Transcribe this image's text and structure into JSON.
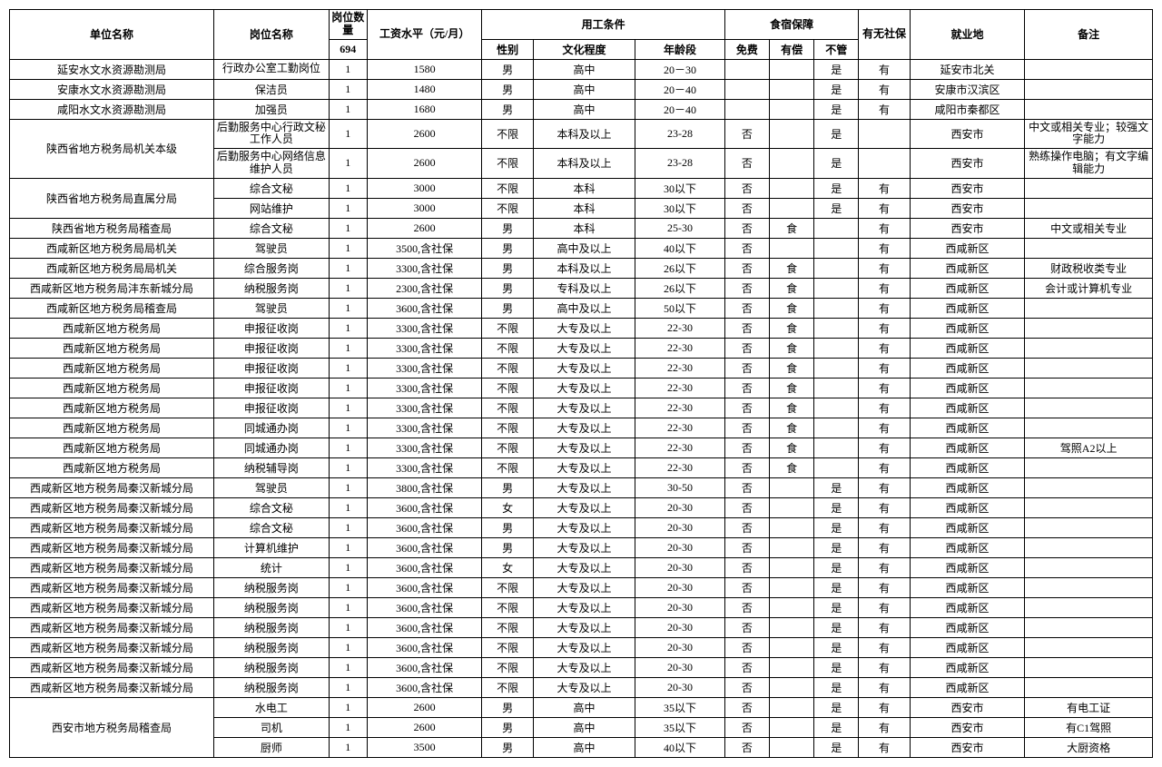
{
  "headers": {
    "unit": "单位名称",
    "position": "岗位名称",
    "count_label": "岗位数量",
    "count_total": "694",
    "salary": "工资水平（元/月）",
    "conditions": "用工条件",
    "gender": "性别",
    "education": "文化程度",
    "age": "年龄段",
    "room_board": "食宿保障",
    "free": "免费",
    "paid": "有偿",
    "none": "不管",
    "social_sec": "有无社保",
    "location": "就业地",
    "notes": "备注"
  },
  "rows": [
    {
      "unit": "延安水文水资源勘测局",
      "position": "行政办公室工勤岗位",
      "wrap_p": true,
      "count": "1",
      "salary": "1580",
      "gender": "男",
      "edu": "高中",
      "age": "20－30",
      "free": "",
      "paid": "",
      "none": "是",
      "ss": "有",
      "loc": "延安市北关",
      "note": ""
    },
    {
      "unit": "安康水文水资源勘测局",
      "position": "保洁员",
      "count": "1",
      "salary": "1480",
      "gender": "男",
      "edu": "高中",
      "age": "20－40",
      "free": "",
      "paid": "",
      "none": "是",
      "ss": "有",
      "loc": "安康市汉滨区",
      "note": ""
    },
    {
      "unit": "咸阳水文水资源勘测局",
      "position": "加强员",
      "count": "1",
      "salary": "1680",
      "gender": "男",
      "edu": "高中",
      "age": "20－40",
      "free": "",
      "paid": "",
      "none": "是",
      "ss": "有",
      "loc": "咸阳市秦都区",
      "note": ""
    },
    {
      "unit": "陕西省地方税务局机关本级",
      "span": 2,
      "position": "后勤服务中心行政文秘工作人员",
      "wrap_p": true,
      "count": "1",
      "salary": "2600",
      "gender": "不限",
      "edu": "本科及以上",
      "age": "23-28",
      "free": "否",
      "paid": "",
      "none": "是",
      "ss": "",
      "loc": "西安市",
      "note": "中文或相关专业；较强文字能力",
      "wrap_n": true
    },
    {
      "position": "后勤服务中心网络信息维护人员",
      "wrap_p": true,
      "count": "1",
      "salary": "2600",
      "gender": "不限",
      "edu": "本科及以上",
      "age": "23-28",
      "free": "否",
      "paid": "",
      "none": "是",
      "ss": "",
      "loc": "西安市",
      "note": "熟练操作电脑；有文字编辑能力",
      "wrap_n": true
    },
    {
      "unit": "陕西省地方税务局直属分局",
      "span": 2,
      "position": "综合文秘",
      "count": "1",
      "salary": "3000",
      "gender": "不限",
      "edu": "本科",
      "age": "30以下",
      "free": "否",
      "paid": "",
      "none": "是",
      "ss": "有",
      "loc": "西安市",
      "note": ""
    },
    {
      "position": "网站维护",
      "count": "1",
      "salary": "3000",
      "gender": "不限",
      "edu": "本科",
      "age": "30以下",
      "free": "否",
      "paid": "",
      "none": "是",
      "ss": "有",
      "loc": "西安市",
      "note": ""
    },
    {
      "unit": "陕西省地方税务局稽查局",
      "position": "综合文秘",
      "count": "1",
      "salary": "2600",
      "gender": "男",
      "edu": "本科",
      "age": "25-30",
      "free": "否",
      "paid": "食",
      "none": "",
      "ss": "有",
      "loc": "西安市",
      "note": "中文或相关专业"
    },
    {
      "unit": "西咸新区地方税务局局机关",
      "position": "驾驶员",
      "count": "1",
      "salary": "3500,含社保",
      "gender": "男",
      "edu": "高中及以上",
      "age": "40以下",
      "free": "否",
      "paid": "",
      "none": "",
      "ss": "有",
      "loc": "西咸新区",
      "note": ""
    },
    {
      "unit": "西咸新区地方税务局局机关",
      "position": "综合服务岗",
      "count": "1",
      "salary": "3300,含社保",
      "gender": "男",
      "edu": "本科及以上",
      "age": "26以下",
      "free": "否",
      "paid": "食",
      "none": "",
      "ss": "有",
      "loc": "西咸新区",
      "note": "财政税收类专业"
    },
    {
      "unit": "西咸新区地方税务局沣东新城分局",
      "position": "纳税服务岗",
      "count": "1",
      "salary": "2300,含社保",
      "gender": "男",
      "edu": "专科及以上",
      "age": "26以下",
      "free": "否",
      "paid": "食",
      "none": "",
      "ss": "有",
      "loc": "西咸新区",
      "note": "会计或计算机专业"
    },
    {
      "unit": "西咸新区地方税务局稽查局",
      "position": "驾驶员",
      "count": "1",
      "salary": "3600,含社保",
      "gender": "男",
      "edu": "高中及以上",
      "age": "50以下",
      "free": "否",
      "paid": "食",
      "none": "",
      "ss": "有",
      "loc": "西咸新区",
      "note": ""
    },
    {
      "unit": "西咸新区地方税务局",
      "position": "申报征收岗",
      "count": "1",
      "salary": "3300,含社保",
      "gender": "不限",
      "edu": "大专及以上",
      "age": "22-30",
      "free": "否",
      "paid": "食",
      "none": "",
      "ss": "有",
      "loc": "西咸新区",
      "note": ""
    },
    {
      "unit": "西咸新区地方税务局",
      "position": "申报征收岗",
      "count": "1",
      "salary": "3300,含社保",
      "gender": "不限",
      "edu": "大专及以上",
      "age": "22-30",
      "free": "否",
      "paid": "食",
      "none": "",
      "ss": "有",
      "loc": "西咸新区",
      "note": ""
    },
    {
      "unit": "西咸新区地方税务局",
      "position": "申报征收岗",
      "count": "1",
      "salary": "3300,含社保",
      "gender": "不限",
      "edu": "大专及以上",
      "age": "22-30",
      "free": "否",
      "paid": "食",
      "none": "",
      "ss": "有",
      "loc": "西咸新区",
      "note": ""
    },
    {
      "unit": "西咸新区地方税务局",
      "position": "申报征收岗",
      "count": "1",
      "salary": "3300,含社保",
      "gender": "不限",
      "edu": "大专及以上",
      "age": "22-30",
      "free": "否",
      "paid": "食",
      "none": "",
      "ss": "有",
      "loc": "西咸新区",
      "note": ""
    },
    {
      "unit": "西咸新区地方税务局",
      "position": "申报征收岗",
      "count": "1",
      "salary": "3300,含社保",
      "gender": "不限",
      "edu": "大专及以上",
      "age": "22-30",
      "free": "否",
      "paid": "食",
      "none": "",
      "ss": "有",
      "loc": "西咸新区",
      "note": ""
    },
    {
      "unit": "西咸新区地方税务局",
      "position": "同城通办岗",
      "count": "1",
      "salary": "3300,含社保",
      "gender": "不限",
      "edu": "大专及以上",
      "age": "22-30",
      "free": "否",
      "paid": "食",
      "none": "",
      "ss": "有",
      "loc": "西咸新区",
      "note": ""
    },
    {
      "unit": "西咸新区地方税务局",
      "position": "同城通办岗",
      "count": "1",
      "salary": "3300,含社保",
      "gender": "不限",
      "edu": "大专及以上",
      "age": "22-30",
      "free": "否",
      "paid": "食",
      "none": "",
      "ss": "有",
      "loc": "西咸新区",
      "note": "驾照A2以上"
    },
    {
      "unit": "西咸新区地方税务局",
      "position": "纳税辅导岗",
      "count": "1",
      "salary": "3300,含社保",
      "gender": "不限",
      "edu": "大专及以上",
      "age": "22-30",
      "free": "否",
      "paid": "食",
      "none": "",
      "ss": "有",
      "loc": "西咸新区",
      "note": ""
    },
    {
      "unit": "西咸新区地方税务局秦汉新城分局",
      "position": "驾驶员",
      "count": "1",
      "salary": "3800,含社保",
      "gender": "男",
      "edu": "大专及以上",
      "age": "30-50",
      "free": "否",
      "paid": "",
      "none": "是",
      "ss": "有",
      "loc": "西咸新区",
      "note": ""
    },
    {
      "unit": "西咸新区地方税务局秦汉新城分局",
      "position": "综合文秘",
      "count": "1",
      "salary": "3600,含社保",
      "gender": "女",
      "edu": "大专及以上",
      "age": "20-30",
      "free": "否",
      "paid": "",
      "none": "是",
      "ss": "有",
      "loc": "西咸新区",
      "note": ""
    },
    {
      "unit": "西咸新区地方税务局秦汉新城分局",
      "position": "综合文秘",
      "count": "1",
      "salary": "3600,含社保",
      "gender": "男",
      "edu": "大专及以上",
      "age": "20-30",
      "free": "否",
      "paid": "",
      "none": "是",
      "ss": "有",
      "loc": "西咸新区",
      "note": ""
    },
    {
      "unit": "西咸新区地方税务局秦汉新城分局",
      "position": "计算机维护",
      "count": "1",
      "salary": "3600,含社保",
      "gender": "男",
      "edu": "大专及以上",
      "age": "20-30",
      "free": "否",
      "paid": "",
      "none": "是",
      "ss": "有",
      "loc": "西咸新区",
      "note": ""
    },
    {
      "unit": "西咸新区地方税务局秦汉新城分局",
      "position": "统计",
      "count": "1",
      "salary": "3600,含社保",
      "gender": "女",
      "edu": "大专及以上",
      "age": "20-30",
      "free": "否",
      "paid": "",
      "none": "是",
      "ss": "有",
      "loc": "西咸新区",
      "note": ""
    },
    {
      "unit": "西咸新区地方税务局秦汉新城分局",
      "position": "纳税服务岗",
      "count": "1",
      "salary": "3600,含社保",
      "gender": "不限",
      "edu": "大专及以上",
      "age": "20-30",
      "free": "否",
      "paid": "",
      "none": "是",
      "ss": "有",
      "loc": "西咸新区",
      "note": ""
    },
    {
      "unit": "西咸新区地方税务局秦汉新城分局",
      "position": "纳税服务岗",
      "count": "1",
      "salary": "3600,含社保",
      "gender": "不限",
      "edu": "大专及以上",
      "age": "20-30",
      "free": "否",
      "paid": "",
      "none": "是",
      "ss": "有",
      "loc": "西咸新区",
      "note": ""
    },
    {
      "unit": "西咸新区地方税务局秦汉新城分局",
      "position": "纳税服务岗",
      "count": "1",
      "salary": "3600,含社保",
      "gender": "不限",
      "edu": "大专及以上",
      "age": "20-30",
      "free": "否",
      "paid": "",
      "none": "是",
      "ss": "有",
      "loc": "西咸新区",
      "note": ""
    },
    {
      "unit": "西咸新区地方税务局秦汉新城分局",
      "position": "纳税服务岗",
      "count": "1",
      "salary": "3600,含社保",
      "gender": "不限",
      "edu": "大专及以上",
      "age": "20-30",
      "free": "否",
      "paid": "",
      "none": "是",
      "ss": "有",
      "loc": "西咸新区",
      "note": ""
    },
    {
      "unit": "西咸新区地方税务局秦汉新城分局",
      "position": "纳税服务岗",
      "count": "1",
      "salary": "3600,含社保",
      "gender": "不限",
      "edu": "大专及以上",
      "age": "20-30",
      "free": "否",
      "paid": "",
      "none": "是",
      "ss": "有",
      "loc": "西咸新区",
      "note": ""
    },
    {
      "unit": "西咸新区地方税务局秦汉新城分局",
      "position": "纳税服务岗",
      "count": "1",
      "salary": "3600,含社保",
      "gender": "不限",
      "edu": "大专及以上",
      "age": "20-30",
      "free": "否",
      "paid": "",
      "none": "是",
      "ss": "有",
      "loc": "西咸新区",
      "note": ""
    },
    {
      "unit": "西安市地方税务局稽查局",
      "span": 3,
      "position": "水电工",
      "count": "1",
      "salary": "2600",
      "gender": "男",
      "edu": "高中",
      "age": "35以下",
      "free": "否",
      "paid": "",
      "none": "是",
      "ss": "有",
      "loc": "西安市",
      "note": "有电工证"
    },
    {
      "position": "司机",
      "count": "1",
      "salary": "2600",
      "gender": "男",
      "edu": "高中",
      "age": "35以下",
      "free": "否",
      "paid": "",
      "none": "是",
      "ss": "有",
      "loc": "西安市",
      "note": "有C1驾照"
    },
    {
      "position": "厨师",
      "count": "1",
      "salary": "3500",
      "gender": "男",
      "edu": "高中",
      "age": "40以下",
      "free": "否",
      "paid": "",
      "none": "是",
      "ss": "有",
      "loc": "西安市",
      "note": "大厨资格"
    }
  ]
}
